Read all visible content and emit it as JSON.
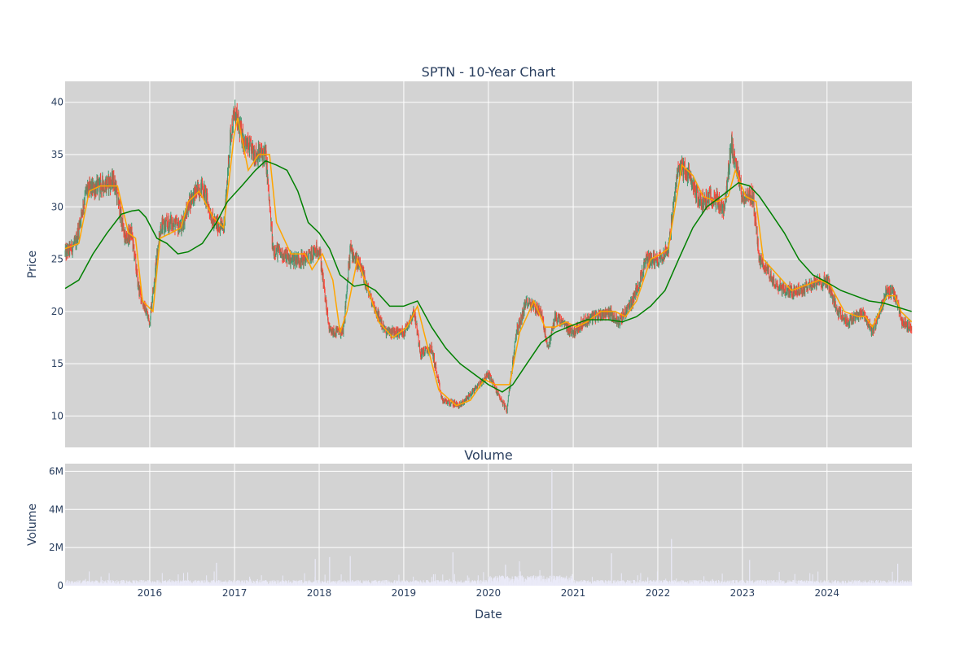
{
  "chart_data": [
    {
      "type": "candlestick",
      "title": "SPTN - 10-Year Chart",
      "ylabel": "Price",
      "ylim": [
        7,
        42
      ],
      "xlim": [
        "2015-01-01",
        "2025-01-01"
      ],
      "y_ticks": [
        10,
        15,
        20,
        25,
        30,
        35,
        40
      ],
      "grid": true,
      "colors": {
        "up": "#3d9970",
        "down": "#ff4136",
        "ma_short": "#ffa500",
        "ma_long": "#008000",
        "plot_bg": "#d3d3d3",
        "grid": "#ffffff"
      },
      "price_path": [
        [
          "2015-01-01",
          25.5
        ],
        [
          "2015-02-15",
          26.5
        ],
        [
          "2015-04-01",
          31.5
        ],
        [
          "2015-06-01",
          32.0
        ],
        [
          "2015-08-01",
          32.5
        ],
        [
          "2015-09-15",
          27.0
        ],
        [
          "2015-10-15",
          27.5
        ],
        [
          "2015-11-15",
          22.0
        ],
        [
          "2015-12-31",
          19.0
        ],
        [
          "2016-02-15",
          28.0
        ],
        [
          "2016-04-01",
          28.5
        ],
        [
          "2016-05-15",
          28.0
        ],
        [
          "2016-07-01",
          31.0
        ],
        [
          "2016-08-15",
          32.0
        ],
        [
          "2016-10-01",
          28.5
        ],
        [
          "2016-11-15",
          28.0
        ],
        [
          "2016-12-15",
          37.0
        ],
        [
          "2017-01-01",
          39.0
        ],
        [
          "2017-02-15",
          36.0
        ],
        [
          "2017-04-01",
          35.0
        ],
        [
          "2017-05-15",
          35.0
        ],
        [
          "2017-06-15",
          26.0
        ],
        [
          "2017-09-01",
          25.0
        ],
        [
          "2017-11-01",
          25.0
        ],
        [
          "2018-01-01",
          26.0
        ],
        [
          "2018-02-15",
          18.0
        ],
        [
          "2018-04-15",
          18.0
        ],
        [
          "2018-05-15",
          26.0
        ],
        [
          "2018-07-01",
          24.0
        ],
        [
          "2018-08-15",
          21.0
        ],
        [
          "2018-10-15",
          18.0
        ],
        [
          "2018-12-31",
          18.0
        ],
        [
          "2019-02-15",
          20.0
        ],
        [
          "2019-03-15",
          16.0
        ],
        [
          "2019-05-01",
          16.5
        ],
        [
          "2019-06-15",
          11.5
        ],
        [
          "2019-09-01",
          11.0
        ],
        [
          "2019-11-01",
          12.5
        ],
        [
          "2020-01-01",
          14.0
        ],
        [
          "2020-02-15",
          12.0
        ],
        [
          "2020-03-20",
          10.5
        ],
        [
          "2020-05-01",
          18.0
        ],
        [
          "2020-06-15",
          21.0
        ],
        [
          "2020-08-15",
          20.0
        ],
        [
          "2020-09-15",
          16.5
        ],
        [
          "2020-10-15",
          19.5
        ],
        [
          "2020-12-31",
          18.0
        ],
        [
          "2021-02-15",
          19.0
        ],
        [
          "2021-04-01",
          19.5
        ],
        [
          "2021-06-01",
          20.0
        ],
        [
          "2021-07-15",
          19.0
        ],
        [
          "2021-09-15",
          21.0
        ],
        [
          "2021-11-15",
          25.0
        ],
        [
          "2021-12-31",
          25.0
        ],
        [
          "2022-02-15",
          26.0
        ],
        [
          "2022-04-01",
          34.0
        ],
        [
          "2022-05-15",
          33.0
        ],
        [
          "2022-07-01",
          30.5
        ],
        [
          "2022-09-01",
          31.0
        ],
        [
          "2022-10-15",
          29.5
        ],
        [
          "2022-11-15",
          36.0
        ],
        [
          "2022-12-31",
          31.0
        ],
        [
          "2023-02-15",
          31.0
        ],
        [
          "2023-03-15",
          25.0
        ],
        [
          "2023-05-15",
          23.0
        ],
        [
          "2023-07-01",
          22.0
        ],
        [
          "2023-09-01",
          22.0
        ],
        [
          "2023-10-15",
          22.5
        ],
        [
          "2023-12-31",
          23.0
        ],
        [
          "2024-02-15",
          20.0
        ],
        [
          "2024-04-01",
          19.0
        ],
        [
          "2024-06-01",
          20.0
        ],
        [
          "2024-07-15",
          18.0
        ],
        [
          "2024-09-15",
          22.0
        ],
        [
          "2024-10-20",
          21.5
        ],
        [
          "2024-11-20",
          19.0
        ],
        [
          "2024-12-31",
          18.5
        ]
      ],
      "moving_average_short": [
        [
          "2015-01-01",
          26.0
        ],
        [
          "2015-03-01",
          26.5
        ],
        [
          "2015-04-15",
          31.5
        ],
        [
          "2015-06-01",
          32.0
        ],
        [
          "2015-08-15",
          32.0
        ],
        [
          "2015-10-01",
          27.5
        ],
        [
          "2015-11-01",
          27.0
        ],
        [
          "2015-12-01",
          21.0
        ],
        [
          "2016-01-15",
          20.0
        ],
        [
          "2016-02-15",
          27.0
        ],
        [
          "2016-04-01",
          27.5
        ],
        [
          "2016-05-15",
          28.0
        ],
        [
          "2016-06-15",
          30.5
        ],
        [
          "2016-08-01",
          31.5
        ],
        [
          "2016-10-01",
          29.0
        ],
        [
          "2016-11-15",
          28.0
        ],
        [
          "2016-12-31",
          37.0
        ],
        [
          "2017-01-15",
          38.5
        ],
        [
          "2017-03-01",
          33.5
        ],
        [
          "2017-04-15",
          35.0
        ],
        [
          "2017-06-01",
          35.0
        ],
        [
          "2017-07-01",
          28.5
        ],
        [
          "2017-09-01",
          25.5
        ],
        [
          "2017-11-01",
          25.5
        ],
        [
          "2017-12-01",
          24.0
        ],
        [
          "2018-01-15",
          25.5
        ],
        [
          "2018-03-01",
          23.0
        ],
        [
          "2018-04-01",
          18.0
        ],
        [
          "2018-05-01",
          20.0
        ],
        [
          "2018-06-15",
          25.0
        ],
        [
          "2018-08-01",
          22.0
        ],
        [
          "2018-09-15",
          19.0
        ],
        [
          "2018-11-15",
          17.5
        ],
        [
          "2019-01-15",
          18.5
        ],
        [
          "2019-03-01",
          20.5
        ],
        [
          "2019-04-15",
          16.5
        ],
        [
          "2019-06-01",
          12.5
        ],
        [
          "2019-08-15",
          11.0
        ],
        [
          "2019-10-15",
          11.5
        ],
        [
          "2019-12-15",
          13.5
        ],
        [
          "2020-02-01",
          13.0
        ],
        [
          "2020-04-01",
          13.0
        ],
        [
          "2020-05-15",
          18.0
        ],
        [
          "2020-07-15",
          21.0
        ],
        [
          "2020-09-01",
          18.5
        ],
        [
          "2020-10-15",
          18.5
        ],
        [
          "2020-12-01",
          19.0
        ],
        [
          "2021-01-15",
          18.5
        ],
        [
          "2021-03-01",
          19.0
        ],
        [
          "2021-05-01",
          20.0
        ],
        [
          "2021-07-01",
          20.0
        ],
        [
          "2021-08-15",
          19.5
        ],
        [
          "2021-10-01",
          21.0
        ],
        [
          "2021-12-01",
          25.0
        ],
        [
          "2022-01-15",
          25.5
        ],
        [
          "2022-02-15",
          26.0
        ],
        [
          "2022-04-15",
          34.0
        ],
        [
          "2022-06-01",
          33.0
        ],
        [
          "2022-07-15",
          31.0
        ],
        [
          "2022-09-15",
          30.5
        ],
        [
          "2022-11-01",
          31.0
        ],
        [
          "2022-12-01",
          33.5
        ],
        [
          "2023-01-15",
          31.0
        ],
        [
          "2023-03-01",
          30.5
        ],
        [
          "2023-04-01",
          25.0
        ],
        [
          "2023-06-01",
          23.5
        ],
        [
          "2023-08-01",
          22.0
        ],
        [
          "2023-10-01",
          22.5
        ],
        [
          "2023-12-01",
          23.0
        ],
        [
          "2024-01-15",
          22.5
        ],
        [
          "2024-03-15",
          20.0
        ],
        [
          "2024-05-15",
          19.5
        ],
        [
          "2024-06-15",
          19.5
        ],
        [
          "2024-07-15",
          18.5
        ],
        [
          "2024-09-15",
          21.5
        ],
        [
          "2024-10-20",
          21.5
        ],
        [
          "2024-11-15",
          20.0
        ],
        [
          "2024-12-31",
          19.0
        ]
      ],
      "moving_average_long": [
        [
          "2015-01-01",
          22.2
        ],
        [
          "2015-03-01",
          23.0
        ],
        [
          "2015-05-01",
          25.5
        ],
        [
          "2015-07-01",
          27.5
        ],
        [
          "2015-09-01",
          29.3
        ],
        [
          "2015-10-15",
          29.6
        ],
        [
          "2015-11-15",
          29.7
        ],
        [
          "2015-12-15",
          29.0
        ],
        [
          "2016-02-01",
          27.0
        ],
        [
          "2016-03-15",
          26.5
        ],
        [
          "2016-05-01",
          25.5
        ],
        [
          "2016-06-15",
          25.7
        ],
        [
          "2016-08-15",
          26.5
        ],
        [
          "2016-10-15",
          28.5
        ],
        [
          "2016-12-01",
          30.5
        ],
        [
          "2017-02-01",
          32.0
        ],
        [
          "2017-04-01",
          33.5
        ],
        [
          "2017-05-15",
          34.4
        ],
        [
          "2017-07-01",
          34.0
        ],
        [
          "2017-08-15",
          33.5
        ],
        [
          "2017-10-01",
          31.5
        ],
        [
          "2017-11-15",
          28.5
        ],
        [
          "2018-01-01",
          27.5
        ],
        [
          "2018-02-15",
          26.0
        ],
        [
          "2018-04-01",
          23.5
        ],
        [
          "2018-06-01",
          22.4
        ],
        [
          "2018-07-15",
          22.6
        ],
        [
          "2018-09-01",
          22.0
        ],
        [
          "2018-11-01",
          20.5
        ],
        [
          "2018-12-31",
          20.5
        ],
        [
          "2019-03-01",
          21.0
        ],
        [
          "2019-05-01",
          18.5
        ],
        [
          "2019-07-01",
          16.5
        ],
        [
          "2019-09-01",
          15.0
        ],
        [
          "2019-11-01",
          14.0
        ],
        [
          "2020-01-01",
          13.0
        ],
        [
          "2020-03-01",
          12.3
        ],
        [
          "2020-04-15",
          13.0
        ],
        [
          "2020-06-15",
          15.0
        ],
        [
          "2020-08-15",
          17.0
        ],
        [
          "2020-10-15",
          18.0
        ],
        [
          "2020-12-31",
          18.7
        ],
        [
          "2021-03-01",
          19.2
        ],
        [
          "2021-06-01",
          19.2
        ],
        [
          "2021-08-01",
          19.0
        ],
        [
          "2021-10-01",
          19.5
        ],
        [
          "2021-12-01",
          20.5
        ],
        [
          "2022-02-01",
          22.0
        ],
        [
          "2022-04-01",
          25.0
        ],
        [
          "2022-06-01",
          28.0
        ],
        [
          "2022-08-01",
          30.0
        ],
        [
          "2022-10-01",
          31.0
        ],
        [
          "2022-12-15",
          32.3
        ],
        [
          "2023-02-01",
          32.0
        ],
        [
          "2023-03-15",
          31.0
        ],
        [
          "2023-05-01",
          29.5
        ],
        [
          "2023-07-01",
          27.5
        ],
        [
          "2023-09-01",
          25.0
        ],
        [
          "2023-11-01",
          23.5
        ],
        [
          "2023-12-31",
          22.8
        ],
        [
          "2024-03-01",
          22.0
        ],
        [
          "2024-05-01",
          21.5
        ],
        [
          "2024-07-01",
          21.0
        ],
        [
          "2024-09-01",
          20.8
        ],
        [
          "2024-11-01",
          20.4
        ],
        [
          "2024-12-31",
          20.0
        ]
      ]
    },
    {
      "type": "bar",
      "title": "Volume",
      "xlabel": "Date",
      "ylabel": "Volume",
      "ylim": [
        0,
        6400000
      ],
      "y_ticks": [
        {
          "value": 0,
          "label": "0"
        },
        {
          "value": 2000000,
          "label": "2M"
        },
        {
          "value": 4000000,
          "label": "4M"
        },
        {
          "value": 6000000,
          "label": "6M"
        }
      ],
      "x_ticks": [
        "2016",
        "2017",
        "2018",
        "2019",
        "2020",
        "2021",
        "2022",
        "2023",
        "2024"
      ],
      "bar_color": "#eaeaf8",
      "approx_typical_volume": 250000,
      "spikes": [
        {
          "date": "2016-10-15",
          "value": 1200000
        },
        {
          "date": "2017-12-15",
          "value": 1400000
        },
        {
          "date": "2018-02-15",
          "value": 1500000
        },
        {
          "date": "2018-05-15",
          "value": 1550000
        },
        {
          "date": "2019-08-01",
          "value": 1750000
        },
        {
          "date": "2020-03-15",
          "value": 1100000
        },
        {
          "date": "2020-10-01",
          "value": 6100000
        },
        {
          "date": "2021-06-15",
          "value": 1700000
        },
        {
          "date": "2022-03-01",
          "value": 2450000
        },
        {
          "date": "2023-02-01",
          "value": 1350000
        },
        {
          "date": "2024-11-01",
          "value": 1150000
        }
      ]
    }
  ]
}
